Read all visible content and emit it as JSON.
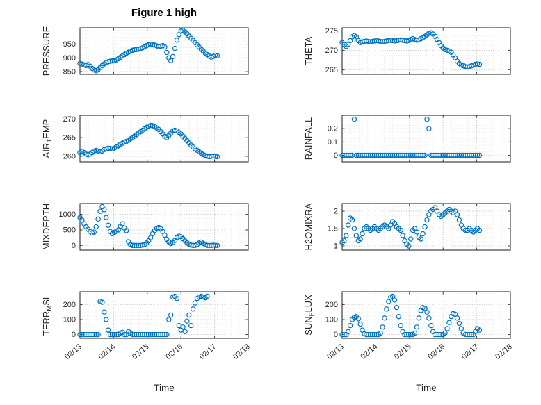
{
  "figure": {
    "title": "Figure 1 high",
    "xlabel": "Time",
    "marker_color": "#0072BD",
    "axis_color": "#262626",
    "xlim": [
      13,
      18
    ],
    "xticks": [
      13,
      14,
      15,
      16,
      17,
      18
    ],
    "xtick_labels": [
      "02/13",
      "02/14",
      "02/15",
      "02/16",
      "02/17",
      "02/18"
    ],
    "x_minor_step": 0.25,
    "grid": "on"
  },
  "shared_x": [
    13.0,
    13.06,
    13.12,
    13.18,
    13.24,
    13.3,
    13.36,
    13.42,
    13.48,
    13.54,
    13.6,
    13.66,
    13.72,
    13.78,
    13.84,
    13.9,
    13.96,
    14.02,
    14.08,
    14.14,
    14.2,
    14.26,
    14.32,
    14.38,
    14.44,
    14.5,
    14.56,
    14.62,
    14.68,
    14.74,
    14.8,
    14.86,
    14.92,
    14.98,
    15.04,
    15.1,
    15.16,
    15.22,
    15.28,
    15.34,
    15.4,
    15.46,
    15.52,
    15.58,
    15.64,
    15.7,
    15.76,
    15.82,
    15.88,
    15.94,
    16.0,
    16.06,
    16.12,
    16.18,
    16.24,
    16.3,
    16.36,
    16.42,
    16.48,
    16.54,
    16.6,
    16.66,
    16.72,
    16.78,
    16.84,
    16.9,
    16.96,
    17.02,
    17.08
  ],
  "chart_data": [
    {
      "type": "scatter",
      "name": "pressure",
      "ylabel": "PRESSURE",
      "ylabel_parts": [
        {
          "text": "PRESSURE"
        }
      ],
      "yticks": [
        850,
        900,
        950
      ],
      "ytick_labels": [
        "850",
        "900",
        "950"
      ],
      "ylim": [
        840,
        1010
      ],
      "y_minor_step": 12.5,
      "y": [
        880,
        878,
        875,
        872,
        876,
        870,
        862,
        856,
        853,
        857,
        865,
        872,
        878,
        883,
        886,
        888,
        889,
        890,
        893,
        897,
        902,
        907,
        912,
        917,
        921,
        925,
        928,
        930,
        931,
        932,
        934,
        937,
        941,
        945,
        948,
        950,
        949,
        947,
        944,
        941,
        943,
        945,
        940,
        920,
        900,
        890,
        905,
        935,
        965,
        985,
        998,
        1000,
        995,
        988,
        980,
        972,
        964,
        956,
        948,
        940,
        932,
        925,
        918,
        912,
        907,
        903,
        906,
        910,
        908
      ]
    },
    {
      "type": "scatter",
      "name": "theta",
      "ylabel": "THETA",
      "ylabel_parts": [
        {
          "text": "THETA"
        }
      ],
      "yticks": [
        265,
        270,
        275
      ],
      "ytick_labels": [
        "265",
        "270",
        "275"
      ],
      "ylim": [
        263.8,
        275.8
      ],
      "y_minor_step": 1.25,
      "y": [
        272.0,
        271.5,
        271.0,
        271.5,
        272.5,
        273.5,
        273.8,
        273.5,
        272.5,
        272.0,
        272.2,
        272.3,
        272.4,
        272.3,
        272.2,
        272.3,
        272.4,
        272.5,
        272.4,
        272.3,
        272.2,
        272.3,
        272.4,
        272.5,
        272.6,
        272.5,
        272.4,
        272.5,
        272.6,
        272.7,
        272.6,
        272.5,
        272.4,
        272.5,
        272.8,
        273.0,
        272.8,
        272.6,
        272.7,
        273.0,
        273.3,
        273.6,
        274.0,
        274.4,
        274.5,
        274.2,
        273.6,
        272.8,
        272.0,
        271.2,
        270.6,
        270.2,
        270.0,
        269.8,
        269.5,
        268.8,
        268.0,
        267.2,
        266.6,
        266.2,
        266.0,
        265.8,
        265.7,
        265.8,
        266.0,
        266.2,
        266.4,
        266.5,
        266.4
      ]
    },
    {
      "type": "scatter",
      "name": "air_temp",
      "ylabel": "AIR_TEMP",
      "ylabel_parts": [
        {
          "text": "AIR"
        },
        {
          "text": "T",
          "sub": true
        },
        {
          "text": "EMP"
        }
      ],
      "yticks": [
        260,
        265,
        270
      ],
      "ytick_labels": [
        "260",
        "265",
        "270"
      ],
      "ylim": [
        258.5,
        271
      ],
      "y_minor_step": 1.25,
      "y": [
        261.0,
        261.3,
        261.0,
        260.6,
        260.4,
        260.6,
        261.0,
        261.4,
        261.6,
        261.4,
        261.2,
        261.4,
        261.8,
        262.0,
        262.2,
        262.1,
        262.0,
        262.2,
        262.5,
        262.8,
        263.2,
        263.5,
        263.8,
        264.0,
        264.3,
        264.7,
        265.0,
        265.4,
        265.8,
        266.2,
        266.6,
        267.0,
        267.4,
        267.8,
        268.1,
        268.3,
        268.2,
        268.0,
        267.6,
        267.2,
        266.6,
        266.0,
        265.4,
        265.0,
        265.6,
        266.2,
        266.8,
        267.0,
        266.8,
        266.4,
        266.0,
        265.4,
        264.8,
        264.2,
        263.6,
        263.0,
        262.5,
        262.0,
        261.6,
        261.2,
        260.8,
        260.5,
        260.2,
        260.0,
        259.9,
        260.0,
        260.1,
        260.0,
        259.9
      ]
    },
    {
      "type": "scatter",
      "name": "rainfall",
      "ylabel": "RAINFALL",
      "ylabel_parts": [
        {
          "text": "RAINFALL"
        }
      ],
      "yticks": [
        0,
        0.1,
        0.2
      ],
      "ytick_labels": [
        "0",
        "0.1",
        "0.2"
      ],
      "ylim": [
        -0.05,
        0.3
      ],
      "y_minor_step": 0.025,
      "y": [
        0,
        0,
        0,
        0,
        0,
        0,
        0.27,
        0,
        0,
        0,
        0,
        0,
        0,
        0,
        0,
        0,
        0,
        0,
        0,
        0,
        0,
        0,
        0,
        0,
        0,
        0,
        0,
        0,
        0,
        0,
        0,
        0,
        0,
        0,
        0,
        0,
        0,
        0,
        0,
        0,
        0,
        0,
        0.27,
        0.2,
        0,
        0,
        0,
        0,
        0,
        0,
        0,
        0,
        0,
        0,
        0,
        0,
        0,
        0,
        0,
        0,
        0,
        0,
        0,
        0,
        0,
        0,
        0,
        0,
        0
      ]
    },
    {
      "type": "scatter",
      "name": "mixdepth",
      "ylabel": "MIXDEPTH",
      "ylabel_parts": [
        {
          "text": "MIXDEPTH"
        }
      ],
      "yticks": [
        0,
        500,
        1000
      ],
      "ytick_labels": [
        "0",
        "500",
        "1000"
      ],
      "ylim": [
        -150,
        1350
      ],
      "y_minor_step": 125,
      "y": [
        900,
        820,
        700,
        600,
        520,
        450,
        400,
        430,
        600,
        850,
        1100,
        1250,
        1150,
        900,
        650,
        450,
        380,
        420,
        460,
        500,
        620,
        700,
        560,
        480,
        120,
        30,
        0,
        0,
        0,
        0,
        0,
        10,
        30,
        80,
        150,
        250,
        380,
        480,
        550,
        580,
        540,
        450,
        330,
        200,
        110,
        60,
        90,
        160,
        250,
        300,
        280,
        220,
        150,
        90,
        40,
        10,
        0,
        0,
        30,
        80,
        110,
        70,
        30,
        0,
        0,
        0,
        10,
        0,
        0
      ]
    },
    {
      "type": "scatter",
      "name": "h2omixra",
      "ylabel": "H2OMIXRA",
      "ylabel_parts": [
        {
          "text": "H2OMIXRA"
        }
      ],
      "yticks": [
        1,
        1.5,
        2
      ],
      "ytick_labels": [
        "1",
        "1.5",
        "2"
      ],
      "ylim": [
        0.88,
        2.22
      ],
      "y_minor_step": 0.125,
      "y": [
        1.1,
        1.15,
        1.3,
        1.6,
        1.8,
        1.75,
        1.5,
        1.3,
        1.15,
        1.2,
        1.35,
        1.5,
        1.55,
        1.5,
        1.45,
        1.5,
        1.55,
        1.5,
        1.45,
        1.5,
        1.55,
        1.6,
        1.55,
        1.5,
        1.6,
        1.7,
        1.65,
        1.55,
        1.5,
        1.45,
        1.3,
        1.15,
        1.05,
        1.0,
        1.2,
        1.45,
        1.5,
        1.4,
        1.25,
        1.2,
        1.35,
        1.55,
        1.75,
        1.9,
        2.0,
        2.05,
        2.1,
        2.0,
        1.9,
        1.85,
        1.9,
        1.95,
        2.0,
        2.05,
        2.0,
        1.95,
        2.0,
        1.9,
        1.75,
        1.6,
        1.5,
        1.45,
        1.45,
        1.5,
        1.45,
        1.4,
        1.45,
        1.5,
        1.45
      ]
    },
    {
      "type": "scatter",
      "name": "terr_msl",
      "ylabel": "TERR_MSL",
      "ylabel_parts": [
        {
          "text": "TERR"
        },
        {
          "text": "M",
          "sub": true
        },
        {
          "text": "SL"
        }
      ],
      "yticks": [
        0,
        100,
        200
      ],
      "ytick_labels": [
        "0",
        "100",
        "200"
      ],
      "ylim": [
        -25,
        285
      ],
      "y_minor_step": 25,
      "y": [
        0,
        0,
        0,
        0,
        0,
        0,
        0,
        0,
        0,
        0,
        220,
        215,
        150,
        100,
        30,
        0,
        0,
        0,
        0,
        0,
        10,
        15,
        0,
        0,
        20,
        10,
        0,
        0,
        0,
        0,
        0,
        0,
        0,
        0,
        0,
        0,
        0,
        0,
        0,
        0,
        0,
        0,
        0,
        0,
        100,
        130,
        250,
        255,
        240,
        60,
        30,
        50,
        20,
        90,
        130,
        60,
        170,
        210,
        240,
        250,
        255,
        250,
        245,
        255,
        null,
        null,
        null,
        null,
        null
      ]
    },
    {
      "type": "scatter",
      "name": "sun_flux",
      "ylabel": "SUN_FLUX",
      "ylabel_parts": [
        {
          "text": "SUN"
        },
        {
          "text": "F",
          "sub": true
        },
        {
          "text": "LUX"
        }
      ],
      "yticks": [
        0,
        100,
        200
      ],
      "ytick_labels": [
        "0",
        "100",
        "200"
      ],
      "ylim": [
        -25,
        285
      ],
      "y_minor_step": 25,
      "y": [
        0,
        0,
        0,
        20,
        60,
        100,
        115,
        120,
        105,
        70,
        30,
        5,
        0,
        0,
        0,
        0,
        0,
        0,
        0,
        10,
        50,
        110,
        170,
        220,
        250,
        255,
        230,
        180,
        120,
        60,
        20,
        0,
        0,
        0,
        0,
        0,
        10,
        50,
        110,
        160,
        180,
        175,
        150,
        110,
        60,
        20,
        0,
        0,
        0,
        0,
        0,
        10,
        40,
        80,
        120,
        140,
        135,
        110,
        75,
        40,
        10,
        0,
        0,
        0,
        0,
        0,
        20,
        40,
        30
      ]
    }
  ]
}
